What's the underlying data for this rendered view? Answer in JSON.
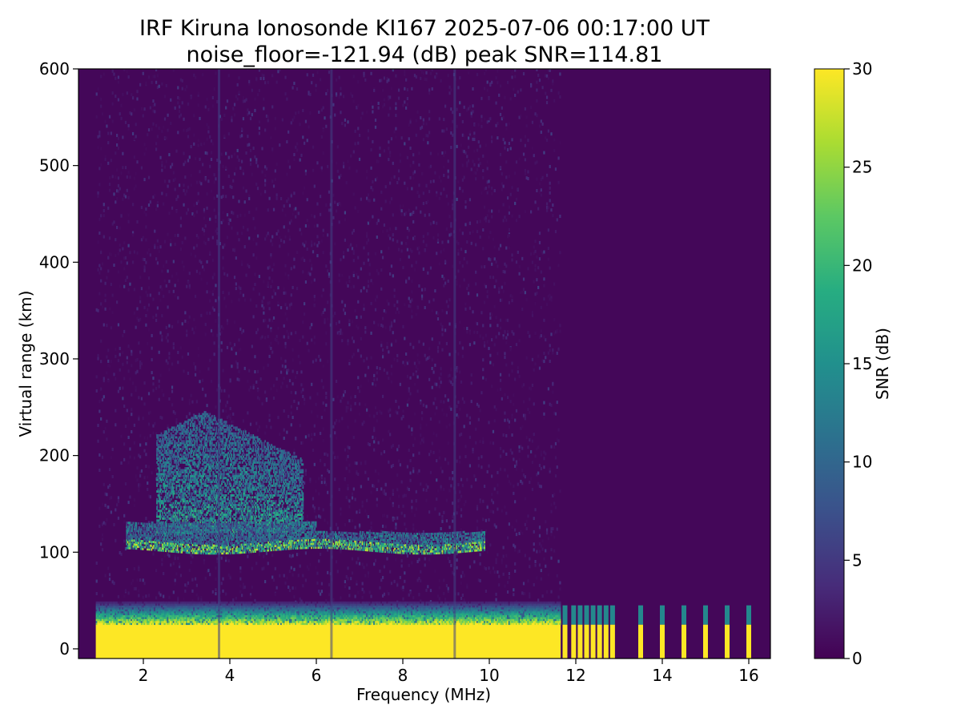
{
  "chart_data": {
    "type": "heatmap",
    "title": "IRF Kiruna Ionosonde KI167 2025-07-06 00:17:00  UT",
    "subtitle": "noise_floor=-121.94 (dB) peak SNR=114.81",
    "xlabel": "Frequency (MHz)",
    "ylabel": "Virtual range (km)",
    "xlim": [
      0.5,
      16.5
    ],
    "ylim": [
      -10,
      600
    ],
    "x_ticks": [
      2,
      4,
      6,
      8,
      10,
      12,
      14,
      16
    ],
    "y_ticks": [
      0,
      100,
      200,
      300,
      400,
      500,
      600
    ],
    "colorbar": {
      "label": "SNR (dB)",
      "range": [
        0,
        30
      ],
      "ticks": [
        0,
        5,
        10,
        15,
        20,
        25,
        30
      ],
      "colormap": "viridis"
    },
    "features": {
      "ground_band": {
        "x_range": [
          0.9,
          11.65
        ],
        "range_km": [
          -10,
          25
        ],
        "snr_db": 30,
        "upper_fringe_km": [
          25,
          48
        ]
      },
      "high_freq_pulses": {
        "x": [
          11.75,
          11.95,
          12.1,
          12.25,
          12.4,
          12.55,
          12.7,
          12.85,
          13.5,
          14.0,
          14.5,
          15.0,
          15.5,
          16.0
        ],
        "range_km": [
          -10,
          25
        ],
        "snr_db": 30
      },
      "e_layer_trace": {
        "x_range": [
          1.6,
          9.9
        ],
        "range_km": [
          100,
          130
        ],
        "snr_db": 28
      },
      "f_layer_region": {
        "x_range": [
          2.3,
          5.7
        ],
        "range_km": [
          120,
          245
        ],
        "snr_db": 22
      },
      "vertical_interference": {
        "x": [
          3.75,
          6.35,
          9.2
        ],
        "snr_db": 6
      }
    }
  },
  "colors": {
    "viridis_low": "#440154",
    "viridis_high": "#fde725",
    "background": "#ffffff"
  }
}
